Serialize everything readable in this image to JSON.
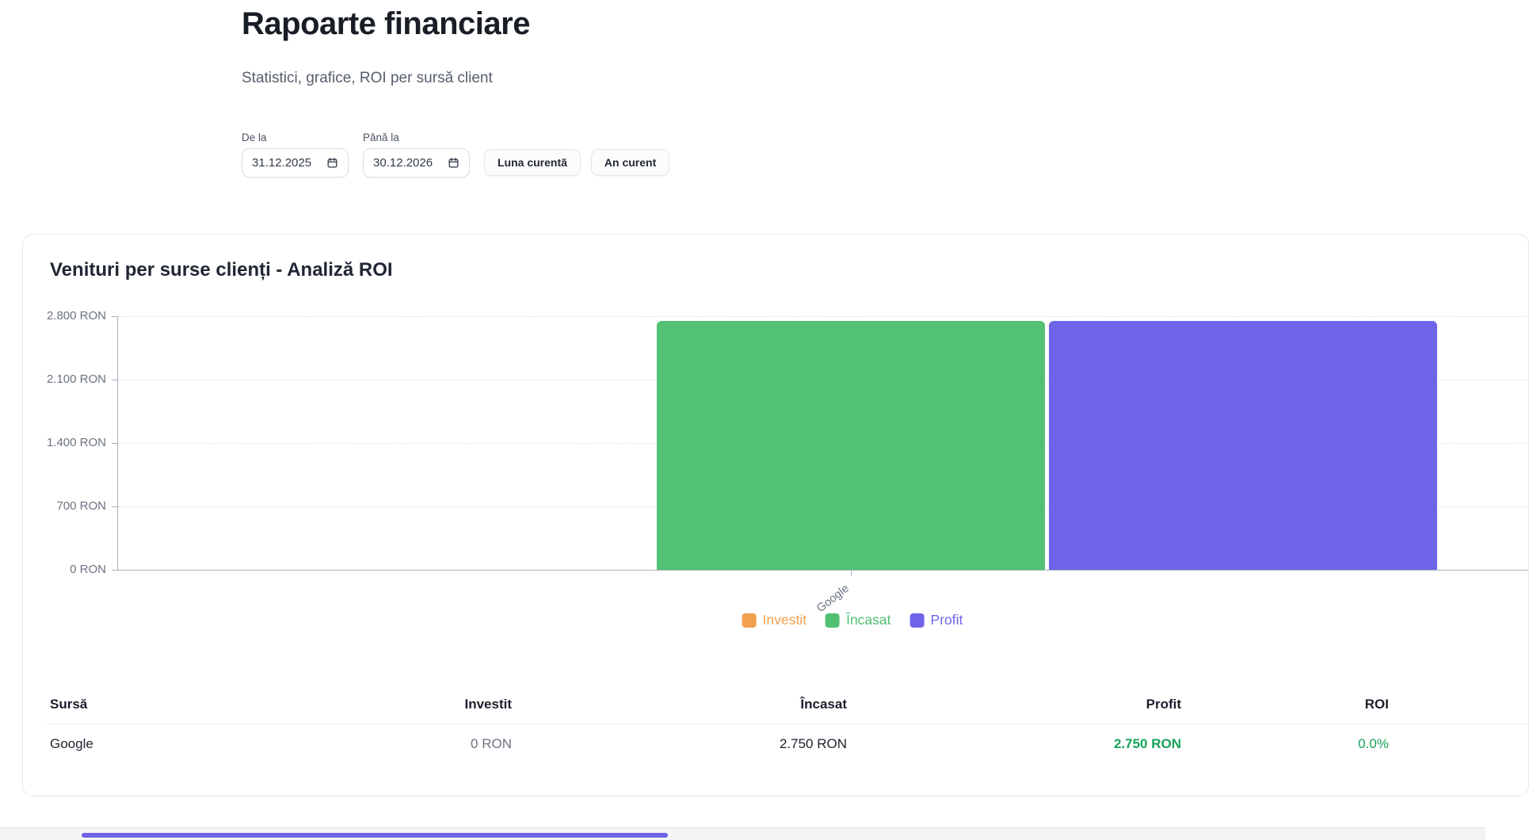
{
  "page": {
    "title": "Rapoarte financiare",
    "subtitle": "Statistici, grafice, ROI per sursă client"
  },
  "filters": {
    "from_label": "De la",
    "from_value": "31.12.2025",
    "to_label": "Până la",
    "to_value": "30.12.2026",
    "current_month_button": "Luna curentă",
    "current_year_button": "An curent"
  },
  "card": {
    "title": "Venituri per surse clienți - Analiză ROI"
  },
  "chart_data": {
    "type": "bar",
    "title": "Venituri per surse clienți - Analiză ROI",
    "categories": [
      "Google"
    ],
    "series": [
      {
        "name": "Investit",
        "color": "#f0a04e",
        "values": [
          0
        ]
      },
      {
        "name": "Încasat",
        "color": "#52c173",
        "values": [
          2750
        ]
      },
      {
        "name": "Profit",
        "color": "#6e64e8",
        "values": [
          2750
        ]
      }
    ],
    "ylim": [
      0,
      2800
    ],
    "yticks": [
      0,
      700,
      1400,
      2100,
      2800
    ],
    "ytick_labels": [
      "0 RON",
      "700 RON",
      "1.400 RON",
      "2.100 RON",
      "2.800 RON"
    ],
    "unit": "RON",
    "grid": "dashed-horizontal",
    "legend_position": "bottom"
  },
  "table": {
    "headers": [
      "Sursă",
      "Investit",
      "Încasat",
      "Profit",
      "ROI"
    ],
    "rows": [
      {
        "cells": [
          "Google",
          "0 RON",
          "2.750 RON",
          "2.750 RON",
          "0.0%"
        ]
      }
    ]
  },
  "colors": {
    "invested_orange": "#f0a04e",
    "collected_green": "#52c173",
    "profit_purple": "#6e64e8",
    "positive_text_green": "#17a45a",
    "scrollbar_thumb": "#6d64e8"
  }
}
